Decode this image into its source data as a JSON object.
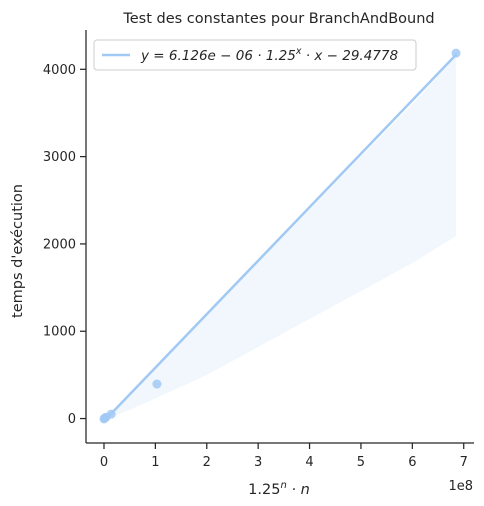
{
  "chart_data": {
    "type": "scatter",
    "title": "Test des constantes pour BranchAndBound",
    "xlabel_base": "1.25",
    "xlabel_exponent": "n",
    "xlabel_suffix": " · n",
    "ylabel": "temps d'exécution",
    "x_offset_label": "1e8",
    "x_scale": 100000000,
    "xlim": [
      -0.35,
      7.2
    ],
    "ylim": [
      -280,
      4450
    ],
    "x_ticks": [
      0,
      1,
      2,
      3,
      4,
      5,
      6,
      7
    ],
    "x_tick_labels": [
      "0",
      "1",
      "2",
      "3",
      "4",
      "5",
      "6",
      "7"
    ],
    "y_ticks": [
      0,
      1000,
      2000,
      3000,
      4000
    ],
    "y_tick_labels": [
      "0",
      "1000",
      "2000",
      "3000",
      "4000"
    ],
    "grid": false,
    "legend_position": "upper-left",
    "series": [
      {
        "name": "y = 6.126e − 06 · 1.25^x · x − 29.4778",
        "legend_prefix": "y = 6.126e − 06 · 1.25",
        "legend_exponent": "x",
        "legend_suffix": " · x − 29.4778",
        "kind": "regression",
        "line_x": [
          0.0,
          6.85
        ],
        "line_y": [
          -29.4778,
          4166
        ],
        "ci_x": [
          0.0,
          1.0,
          2.0,
          3.0,
          4.0,
          5.0,
          6.0,
          6.85
        ],
        "ci_lower": [
          -29,
          230,
          500,
          820,
          1140,
          1460,
          1780,
          2090
        ],
        "ci_upper": [
          -29,
          580,
          1190,
          1790,
          2390,
          3000,
          3600,
          4150
        ]
      }
    ],
    "points": [
      {
        "x": 0.0,
        "y": -5
      },
      {
        "x": 0.02,
        "y": 8
      },
      {
        "x": 0.04,
        "y": 15
      },
      {
        "x": 0.14,
        "y": 50
      },
      {
        "x": 1.03,
        "y": 395
      },
      {
        "x": 6.85,
        "y": 4185
      }
    ],
    "colors": {
      "line": "#a1c9f4",
      "points": "#a1c9f4",
      "ci_fill": "#a1c9f4",
      "axis": "#262626",
      "text": "#262626"
    }
  }
}
